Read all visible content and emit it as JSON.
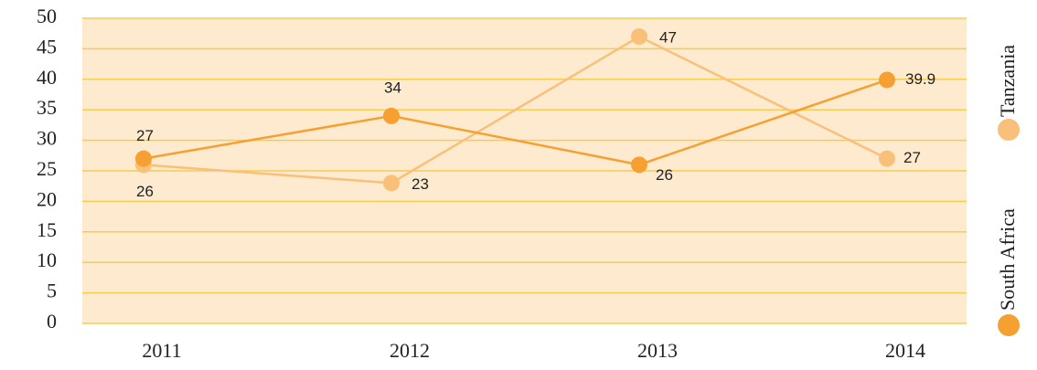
{
  "chart_data": {
    "type": "line",
    "categories": [
      "2011",
      "2012",
      "2013",
      "2014"
    ],
    "series": [
      {
        "name": "South Africa",
        "color": "#f5a030",
        "values": [
          27,
          34,
          26,
          39.9
        ]
      },
      {
        "name": "Tanzania",
        "color": "#f9c07a",
        "values": [
          26,
          23,
          47,
          27
        ]
      }
    ],
    "ylim": [
      0,
      50
    ],
    "yticks": [
      0,
      5,
      10,
      15,
      20,
      25,
      30,
      35,
      40,
      45,
      50
    ],
    "grid": true,
    "legend": "right"
  }
}
